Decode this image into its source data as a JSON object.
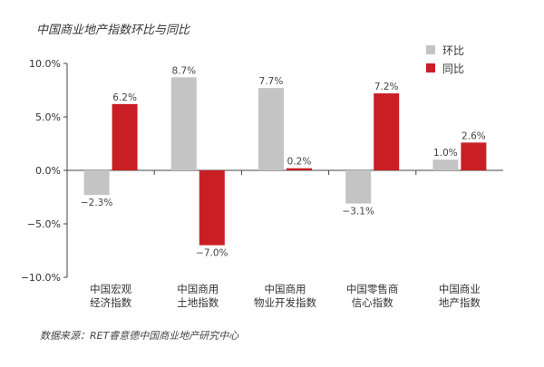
{
  "title": "中国商业地产指数环比与同比",
  "source": "数据来源：RET睿意德中国商业地产研究中心",
  "chart_data": {
    "type": "bar",
    "categories": [
      [
        "中国宏观",
        "经济指数"
      ],
      [
        "中国商用",
        "土地指数"
      ],
      [
        "中国商用",
        "物业开发指数"
      ],
      [
        "中国零售商",
        "信心指数"
      ],
      [
        "中国商业",
        "地产指数"
      ]
    ],
    "series": [
      {
        "name": "环比",
        "color": "#c4c4c4",
        "values": [
          -2.3,
          8.7,
          7.7,
          -3.1,
          1.0
        ]
      },
      {
        "name": "同比",
        "color": "#c81e24",
        "values": [
          6.2,
          -7.0,
          0.2,
          7.2,
          2.6
        ]
      }
    ],
    "ylim": [
      -10,
      10
    ],
    "yticks": [
      10,
      5,
      0,
      -5,
      -10
    ],
    "ytick_labels": [
      "10.0%",
      "5.0%",
      "0.0%",
      "−5.0%",
      "−10.0%"
    ],
    "data_labels": [
      [
        "−2.3%",
        "8.7%",
        "7.7%",
        "−3.1%",
        "1.0%"
      ],
      [
        "6.2%",
        "−7.0%",
        "0.2%",
        "7.2%",
        "2.6%"
      ]
    ],
    "legend_position": "top-right",
    "grid": false
  }
}
